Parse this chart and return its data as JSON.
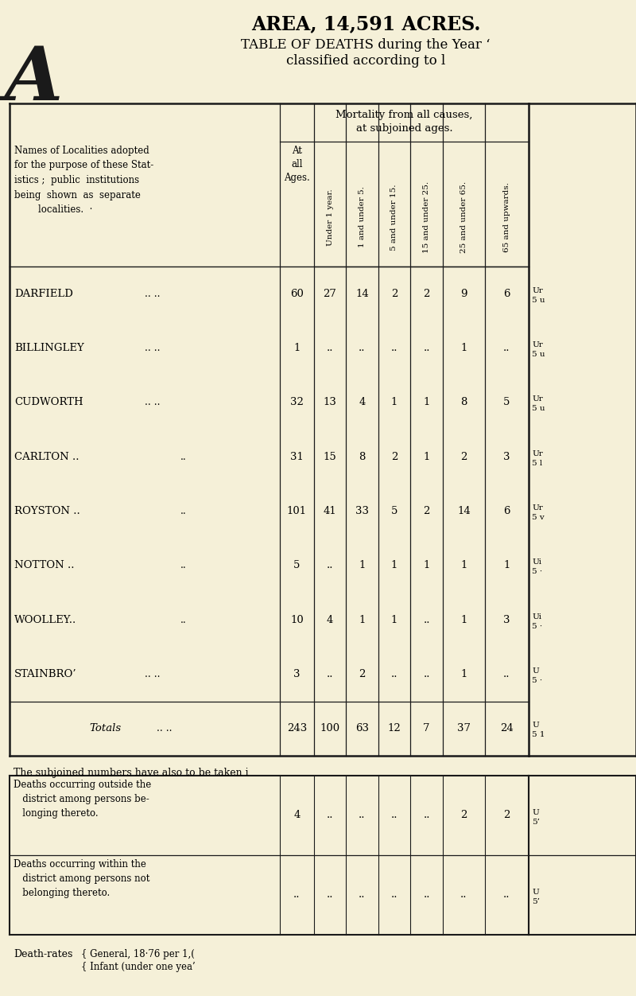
{
  "title_line1": "AREA, 14,591 ACRES.",
  "title_line2": "TABLE OF DEATHS during the Year ‘",
  "title_line3": "classified according to l",
  "big_letter": "A",
  "bg_color": "#f5f0d8",
  "col_header_main": "Mortality from all causes,\nat subjoined ages.",
  "rows": [
    {
      "name": "DARFIELD",
      "extra_dots": true,
      "vals": [
        "60",
        "27",
        "14",
        "2",
        "2",
        "9",
        "6"
      ],
      "right1": "Ur",
      "right2": "5 u"
    },
    {
      "name": "BILLINGLEY",
      "extra_dots": true,
      "vals": [
        "1",
        "..",
        "..",
        "..",
        "..",
        "1",
        ".."
      ],
      "right1": "Ur",
      "right2": "5 u"
    },
    {
      "name": "CUDWORTH",
      "extra_dots": true,
      "vals": [
        "32",
        "13",
        "4",
        "1",
        "1",
        "8",
        "5"
      ],
      "right1": "Ur",
      "right2": "5 u"
    },
    {
      "name": "CARLTON ..",
      "extra_dots": false,
      "dots2": "..",
      "vals": [
        "31",
        "15",
        "8",
        "2",
        "1",
        "2",
        "3"
      ],
      "right1": "Ur",
      "right2": "5 l"
    },
    {
      "name": "ROYSTON ..",
      "extra_dots": false,
      "dots2": "..",
      "vals": [
        "101",
        "41",
        "33",
        "5",
        "2",
        "14",
        "6"
      ],
      "right1": "Ur",
      "right2": "5 v"
    },
    {
      "name": "NOTTON ..",
      "extra_dots": false,
      "dots2": "..",
      "vals": [
        "5",
        "..",
        "1",
        "1",
        "1",
        "1",
        "1"
      ],
      "right1": "Ui",
      "right2": "5 ·"
    },
    {
      "name": "WOOLLEY..",
      "extra_dots": false,
      "dots2": "..",
      "vals": [
        "10",
        "4",
        "1",
        "1",
        "..",
        "1",
        "3"
      ],
      "right1": "Ui",
      "right2": "5 ·"
    },
    {
      "name": "STAINBRO’",
      "extra_dots": false,
      "dots2": "..",
      "vals": [
        "3",
        "..",
        "2",
        "..",
        "..",
        "1",
        ".."
      ],
      "right1": "U",
      "right2": "5 ·"
    },
    {
      "name": "TOTALS",
      "is_total": true,
      "vals": [
        "243",
        "100",
        "63",
        "12",
        "7",
        "37",
        "24"
      ],
      "right1": "U",
      "right2": "5 1"
    }
  ],
  "subjoined_text": "The subjoined numbers have also to be taken i",
  "bottom_rows": [
    {
      "desc": "Deaths occurring outside the\n   district among persons be-\n   longing thereto.",
      "vals": [
        "4",
        "..",
        "..",
        "..",
        "..",
        "2",
        "2"
      ],
      "right1": "U",
      "right2": "5’"
    },
    {
      "desc": "Deaths occurring within the\n   district among persons not\n   belonging thereto.",
      "vals": [
        "..",
        "..",
        "..",
        "..",
        "..",
        "..",
        ".."
      ],
      "right1": "U",
      "right2": "5’"
    }
  ],
  "death_rates_text": "Death-rates",
  "death_rates_val1": "{ General, 18·76 per 1,(",
  "death_rates_val2": "{ Infant (under one yea’"
}
